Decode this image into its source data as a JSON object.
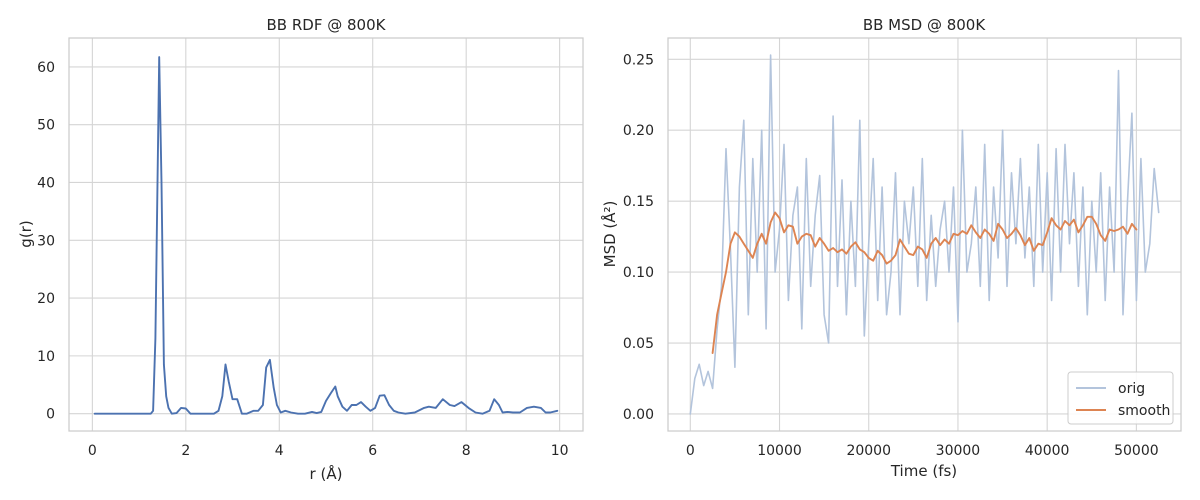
{
  "chart_data": [
    {
      "type": "line",
      "title": "BB RDF @ 800K",
      "xlabel": "r (Å)",
      "ylabel": "g(r)",
      "xlim": [
        -0.5,
        10.5
      ],
      "ylim": [
        -3,
        65
      ],
      "xticks": [
        0,
        2,
        4,
        6,
        8,
        10
      ],
      "yticks": [
        0,
        10,
        20,
        30,
        40,
        50,
        60
      ],
      "xtick_labels": [
        "0",
        "2",
        "4",
        "6",
        "8",
        "10"
      ],
      "ytick_labels": [
        "0",
        "10",
        "20",
        "30",
        "40",
        "50",
        "60"
      ],
      "grid": true,
      "series": [
        {
          "color": "#4c72b0",
          "x": [
            0.05,
            0.2,
            0.4,
            0.6,
            0.8,
            1.0,
            1.15,
            1.25,
            1.3,
            1.35,
            1.43,
            1.48,
            1.53,
            1.58,
            1.63,
            1.7,
            1.8,
            1.9,
            2.0,
            2.1,
            2.2,
            2.4,
            2.6,
            2.7,
            2.78,
            2.85,
            2.92,
            3.0,
            3.1,
            3.2,
            3.3,
            3.45,
            3.55,
            3.65,
            3.72,
            3.8,
            3.88,
            3.95,
            4.03,
            4.13,
            4.25,
            4.4,
            4.55,
            4.7,
            4.8,
            4.9,
            5.0,
            5.1,
            5.2,
            5.25,
            5.35,
            5.45,
            5.55,
            5.65,
            5.75,
            5.85,
            5.95,
            6.05,
            6.15,
            6.25,
            6.35,
            6.45,
            6.55,
            6.7,
            6.9,
            7.1,
            7.2,
            7.35,
            7.5,
            7.65,
            7.75,
            7.9,
            8.05,
            8.2,
            8.35,
            8.5,
            8.6,
            8.7,
            8.78,
            8.88,
            9.0,
            9.15,
            9.3,
            9.45,
            9.6,
            9.7,
            9.8,
            9.95
          ],
          "y": [
            0,
            0,
            0,
            0,
            0,
            0,
            0,
            0,
            0.5,
            13,
            61.7,
            40,
            8.5,
            3,
            1,
            0,
            0.1,
            1,
            0.9,
            0,
            0,
            0,
            0,
            0.5,
            3,
            8.5,
            5.5,
            2.5,
            2.5,
            0,
            0,
            0.5,
            0.5,
            1.5,
            8,
            9.3,
            4.5,
            1.5,
            0.2,
            0.5,
            0.2,
            0,
            0,
            0.3,
            0.1,
            0.3,
            2.2,
            3.5,
            4.7,
            3,
            1.2,
            0.5,
            1.5,
            1.5,
            2,
            1.2,
            0.5,
            1,
            3.1,
            3.2,
            1.5,
            0.5,
            0.2,
            0,
            0.2,
            1,
            1.2,
            1,
            2.5,
            1.5,
            1.3,
            2,
            1,
            0.2,
            0,
            0.5,
            2.5,
            1.5,
            0.2,
            0.3,
            0.2,
            0.2,
            1,
            1.2,
            1,
            0.2,
            0.2,
            0.5
          ]
        }
      ]
    },
    {
      "type": "line",
      "title": "BB MSD @ 800K",
      "xlabel": "Time (fs)",
      "ylabel": "MSD (Å²)",
      "xlim": [
        -2500,
        55000
      ],
      "ylim": [
        -0.012,
        0.265
      ],
      "xticks": [
        0,
        10000,
        20000,
        30000,
        40000,
        50000
      ],
      "yticks": [
        0.0,
        0.05,
        0.1,
        0.15,
        0.2,
        0.25
      ],
      "xtick_labels": [
        "0",
        "10000",
        "20000",
        "30000",
        "40000",
        "50000"
      ],
      "ytick_labels": [
        "0.00",
        "0.05",
        "0.10",
        "0.15",
        "0.20",
        "0.25"
      ],
      "grid": true,
      "legend_position": "lower-right",
      "series": [
        {
          "name": "orig",
          "color": "#b3c4dc",
          "x": [
            0,
            500,
            1000,
            1500,
            2000,
            2500,
            3000,
            3500,
            4000,
            4500,
            5000,
            5500,
            6000,
            6500,
            7000,
            7500,
            8000,
            8500,
            9000,
            9500,
            10000,
            10500,
            11000,
            11500,
            12000,
            12500,
            13000,
            13500,
            14000,
            14500,
            15000,
            15500,
            16000,
            16500,
            17000,
            17500,
            18000,
            18500,
            19000,
            19500,
            20000,
            20500,
            21000,
            21500,
            22000,
            22500,
            23000,
            23500,
            24000,
            24500,
            25000,
            25500,
            26000,
            26500,
            27000,
            27500,
            28000,
            28500,
            29000,
            29500,
            30000,
            30500,
            31000,
            31500,
            32000,
            32500,
            33000,
            33500,
            34000,
            34500,
            35000,
            35500,
            36000,
            36500,
            37000,
            37500,
            38000,
            38500,
            39000,
            39500,
            40000,
            40500,
            41000,
            41500,
            42000,
            42500,
            43000,
            43500,
            44000,
            44500,
            45000,
            45500,
            46000,
            46500,
            47000,
            47500,
            48000,
            48500,
            49000,
            49500,
            50000,
            50500,
            51000,
            51500,
            52000,
            52500
          ],
          "y": [
            0.0,
            0.025,
            0.035,
            0.02,
            0.03,
            0.018,
            0.06,
            0.09,
            0.187,
            0.115,
            0.033,
            0.16,
            0.207,
            0.07,
            0.18,
            0.1,
            0.2,
            0.06,
            0.253,
            0.1,
            0.13,
            0.19,
            0.08,
            0.14,
            0.16,
            0.06,
            0.18,
            0.09,
            0.14,
            0.168,
            0.07,
            0.05,
            0.21,
            0.09,
            0.165,
            0.07,
            0.15,
            0.09,
            0.207,
            0.055,
            0.12,
            0.18,
            0.08,
            0.16,
            0.07,
            0.1,
            0.17,
            0.07,
            0.15,
            0.12,
            0.16,
            0.09,
            0.18,
            0.08,
            0.14,
            0.09,
            0.13,
            0.15,
            0.1,
            0.16,
            0.065,
            0.2,
            0.1,
            0.12,
            0.16,
            0.09,
            0.19,
            0.08,
            0.16,
            0.11,
            0.2,
            0.09,
            0.17,
            0.12,
            0.18,
            0.11,
            0.16,
            0.09,
            0.19,
            0.1,
            0.17,
            0.08,
            0.187,
            0.1,
            0.19,
            0.12,
            0.17,
            0.09,
            0.16,
            0.07,
            0.15,
            0.1,
            0.17,
            0.08,
            0.16,
            0.1,
            0.242,
            0.07,
            0.15,
            0.212,
            0.08,
            0.18,
            0.1,
            0.12,
            0.173,
            0.142
          ]
        },
        {
          "name": "smooth",
          "color": "#dd8452",
          "x": [
            2500,
            3000,
            3500,
            4000,
            4500,
            5000,
            5500,
            6000,
            6500,
            7000,
            7500,
            8000,
            8500,
            9000,
            9500,
            10000,
            10500,
            11000,
            11500,
            12000,
            12500,
            13000,
            13500,
            14000,
            14500,
            15000,
            15500,
            16000,
            16500,
            17000,
            17500,
            18000,
            18500,
            19000,
            19500,
            20000,
            20500,
            21000,
            21500,
            22000,
            22500,
            23000,
            23500,
            24000,
            24500,
            25000,
            25500,
            26000,
            26500,
            27000,
            27500,
            28000,
            28500,
            29000,
            29500,
            30000,
            30500,
            31000,
            31500,
            32000,
            32500,
            33000,
            33500,
            34000,
            34500,
            35000,
            35500,
            36000,
            36500,
            37000,
            37500,
            38000,
            38500,
            39000,
            39500,
            40000,
            40500,
            41000,
            41500,
            42000,
            42500,
            43000,
            43500,
            44000,
            44500,
            45000,
            45500,
            46000,
            46500,
            47000,
            47500,
            48000,
            48500,
            49000,
            49500,
            50000
          ],
          "y": [
            0.043,
            0.07,
            0.085,
            0.1,
            0.12,
            0.128,
            0.125,
            0.12,
            0.115,
            0.11,
            0.12,
            0.127,
            0.12,
            0.135,
            0.142,
            0.138,
            0.128,
            0.133,
            0.132,
            0.12,
            0.125,
            0.127,
            0.126,
            0.118,
            0.124,
            0.12,
            0.115,
            0.117,
            0.114,
            0.116,
            0.113,
            0.118,
            0.121,
            0.116,
            0.114,
            0.11,
            0.108,
            0.115,
            0.112,
            0.106,
            0.108,
            0.112,
            0.123,
            0.118,
            0.113,
            0.112,
            0.118,
            0.116,
            0.11,
            0.12,
            0.124,
            0.119,
            0.123,
            0.12,
            0.127,
            0.126,
            0.129,
            0.127,
            0.133,
            0.128,
            0.124,
            0.13,
            0.127,
            0.122,
            0.134,
            0.13,
            0.124,
            0.127,
            0.131,
            0.126,
            0.119,
            0.124,
            0.115,
            0.12,
            0.119,
            0.128,
            0.138,
            0.133,
            0.13,
            0.136,
            0.133,
            0.137,
            0.128,
            0.133,
            0.139,
            0.139,
            0.134,
            0.126,
            0.122,
            0.13,
            0.129,
            0.13,
            0.132,
            0.127,
            0.134,
            0.13
          ]
        }
      ]
    }
  ]
}
